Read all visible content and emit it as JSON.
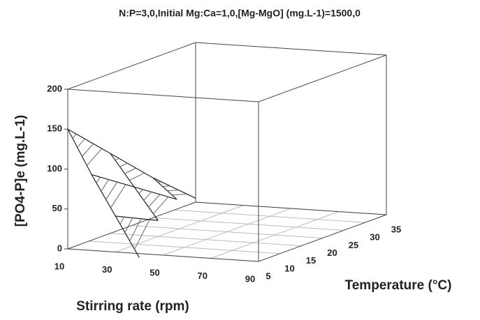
{
  "chart_data": {
    "type": "surface",
    "title": "N:P=3,0,Initial Mg:Ca=1,0,[Mg-MgO] (mg.L-1)=1500,0",
    "xlabel": "Stirring rate (rpm)",
    "ylabel": "Temperature (°C)",
    "zlabel": "[PO4-P]e (mg.L-1)",
    "x": [
      10,
      20,
      30,
      40
    ],
    "y": [
      5,
      15,
      25,
      35
    ],
    "z": [
      [
        150,
        95,
        45,
        -5
      ],
      [
        100,
        60,
        20,
        null
      ],
      [
        50,
        25,
        null,
        null
      ],
      [
        5,
        null,
        null,
        null
      ]
    ],
    "xlim": [
      10,
      90
    ],
    "xticks": [
      10,
      30,
      50,
      70,
      90
    ],
    "ylim": [
      5,
      35
    ],
    "yticks": [
      5,
      10,
      15,
      20,
      25,
      30,
      35
    ],
    "zlim": [
      0,
      200
    ],
    "zticks": [
      0,
      50,
      100,
      150,
      200
    ],
    "color": "#222222",
    "grid": true
  }
}
